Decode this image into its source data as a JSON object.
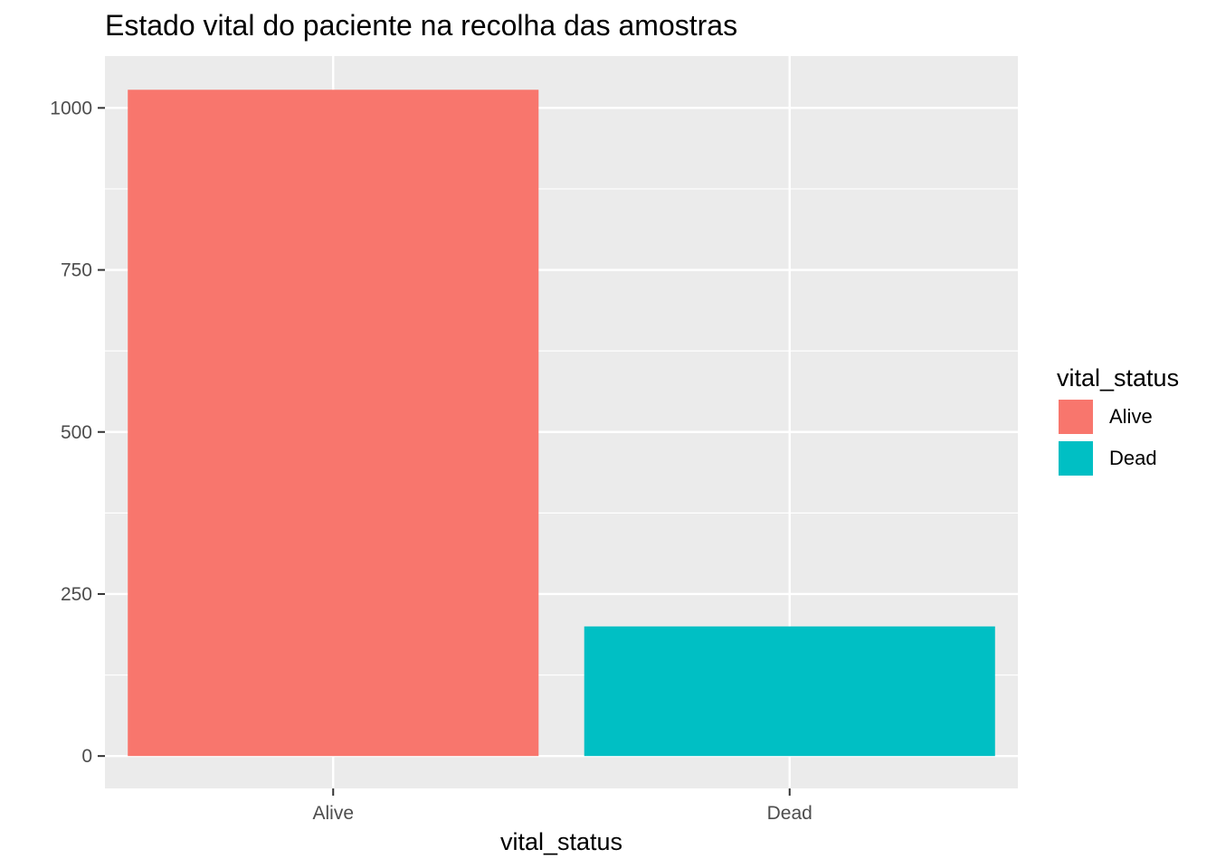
{
  "chart_data": {
    "type": "bar",
    "title": "Estado vital do paciente na recolha das amostras",
    "xlabel": "vital_status",
    "ylabel": "",
    "categories": [
      "Alive",
      "Dead"
    ],
    "values": [
      1028,
      200
    ],
    "colors": [
      "#F8766D",
      "#00BFC4"
    ],
    "ylim": [
      -50,
      1080
    ],
    "yticks": [
      0,
      250,
      500,
      750,
      1000
    ],
    "yminor": [
      125,
      375,
      625,
      875
    ],
    "grid": true,
    "panel_background": "#EBEBEB",
    "legend": {
      "title": "vital_status",
      "placement": "right",
      "entries": [
        {
          "label": "Alive",
          "color": "#F8766D"
        },
        {
          "label": "Dead",
          "color": "#00BFC4"
        }
      ]
    }
  }
}
